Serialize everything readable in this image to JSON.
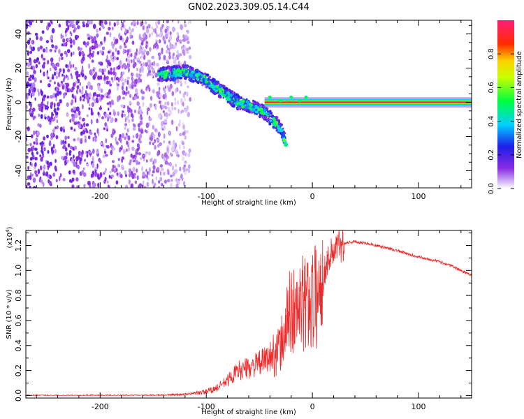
{
  "title": "GN02.2023.309.05.14.C44",
  "colors": {
    "snr_line": "#ee2b2b",
    "axis": "#000000"
  },
  "chart_data": [
    {
      "type": "heatmap",
      "xlabel": "Height of straight line (km)",
      "ylabel": "Frequency (Hz)",
      "xlim": [
        -270,
        150
      ],
      "ylim": [
        -50,
        48
      ],
      "x_ticks": [
        -200,
        -100,
        0,
        100
      ],
      "y_ticks": [
        -40,
        -20,
        0,
        20,
        40
      ],
      "colorbar": {
        "label": "Normalized spectral amplitude",
        "range": [
          0,
          1
        ],
        "ticks": [
          "0.0",
          "0.2",
          "0.4",
          "0.6",
          "0.8"
        ],
        "colormap": "rainbow (white-violet-blue-cyan-green-yellow-red-pink)"
      },
      "features": [
        {
          "name": "broadband noise",
          "x_range": [
            -270,
            -115
          ],
          "y_range": [
            -50,
            48
          ],
          "amplitude": 0.15
        },
        {
          "name": "descending trace",
          "points": [
            [
              -145,
              16
            ],
            [
              -120,
              18
            ],
            [
              -100,
              13
            ],
            [
              -85,
              6
            ],
            [
              -70,
              0
            ],
            [
              -55,
              -3
            ],
            [
              -45,
              -6
            ],
            [
              -30,
              -15
            ],
            [
              -25,
              -23
            ]
          ],
          "amplitude": 0.45
        },
        {
          "name": "steady tone",
          "x_range": [
            -45,
            150
          ],
          "y": 0,
          "amplitude": 0.95
        }
      ]
    },
    {
      "type": "line",
      "xlabel": "Height of straight line (km)",
      "ylabel": "SNR (10 * v/v)",
      "scale_label": "(x10",
      "scale_exp": "4",
      "scale_close": ")",
      "xlim": [
        -270,
        150
      ],
      "ylim": [
        -0.02,
        1.32
      ],
      "x_ticks": [
        -200,
        -100,
        0,
        100
      ],
      "y_ticks": [
        "0.0",
        "0.2",
        "0.4",
        "0.6",
        "0.8",
        "1.0",
        "1.2"
      ],
      "series": [
        {
          "x": [
            -270,
            -200,
            -150,
            -120,
            -100,
            -90,
            -80,
            -70,
            -60,
            -50,
            -40,
            -30,
            -25,
            -20,
            -15,
            -10,
            -5,
            0,
            5,
            10,
            15,
            20,
            25,
            30,
            40,
            50,
            60,
            70,
            80,
            90,
            100,
            110,
            120,
            130,
            140,
            150
          ],
          "y": [
            0.0,
            0.0,
            0.0,
            0.01,
            0.03,
            0.06,
            0.12,
            0.2,
            0.22,
            0.26,
            0.3,
            0.38,
            0.55,
            0.7,
            0.65,
            0.72,
            0.75,
            0.78,
            0.8,
            0.95,
            1.1,
            1.16,
            1.2,
            1.22,
            1.23,
            1.22,
            1.2,
            1.18,
            1.16,
            1.13,
            1.11,
            1.09,
            1.07,
            1.04,
            1.0,
            0.96
          ]
        }
      ]
    }
  ]
}
